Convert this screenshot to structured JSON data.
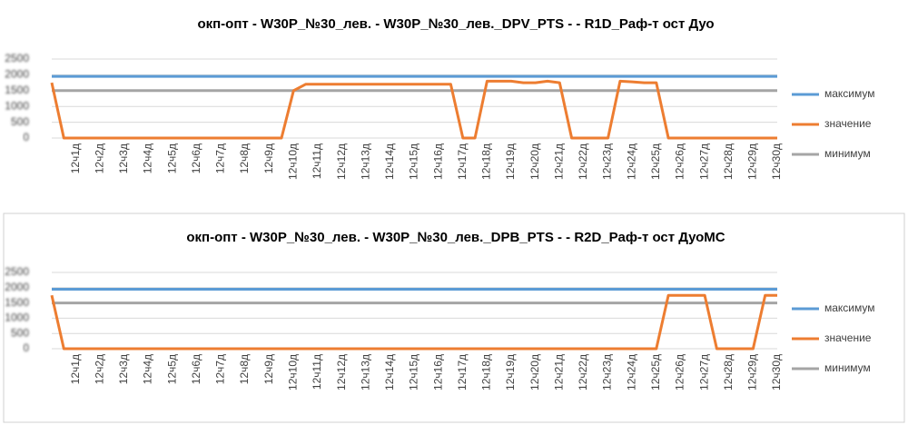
{
  "chart_data": [
    {
      "type": "line",
      "title": "окп-опт - W30P_№30_лев. - W30P_№30_лев._DPV_PTS -  - R1D_Раф-т ост Дуо",
      "categories": [
        null,
        null,
        "12ч1д",
        null,
        "12ч2д",
        null,
        "12ч3д",
        null,
        "12ч4д",
        null,
        "12ч5д",
        null,
        "12ч6д",
        null,
        "12ч7д",
        null,
        "12ч8д",
        null,
        "12ч9д",
        null,
        "12ч10д",
        null,
        "12ч11д",
        null,
        "12ч12д",
        null,
        "12ч13д",
        null,
        "12ч14д",
        null,
        "12ч15д",
        null,
        "12ч16д",
        null,
        "12ч17д",
        null,
        "12ч18д",
        null,
        "12ч19д",
        null,
        "12ч20д",
        null,
        "12ч21д",
        null,
        "12ч22д",
        null,
        "12ч23д",
        null,
        "12ч24д",
        null,
        "12ч25д",
        null,
        "12ч26д",
        null,
        "12ч27д",
        null,
        "12ч28д",
        null,
        "12ч29д",
        null,
        "12ч30д"
      ],
      "series": [
        {
          "name": "максимум",
          "color": "#5b9bd5",
          "values": [
            1950,
            1950,
            1950,
            1950,
            1950,
            1950,
            1950,
            1950,
            1950,
            1950,
            1950,
            1950,
            1950,
            1950,
            1950,
            1950,
            1950,
            1950,
            1950,
            1950,
            1950,
            1950,
            1950,
            1950,
            1950,
            1950,
            1950,
            1950,
            1950,
            1950,
            1950,
            1950,
            1950,
            1950,
            1950,
            1950,
            1950,
            1950,
            1950,
            1950,
            1950,
            1950,
            1950,
            1950,
            1950,
            1950,
            1950,
            1950,
            1950,
            1950,
            1950,
            1950,
            1950,
            1950,
            1950,
            1950,
            1950,
            1950,
            1950,
            1950,
            1950
          ]
        },
        {
          "name": "значение",
          "color": "#ed7d31",
          "values": [
            1750,
            0,
            0,
            0,
            0,
            0,
            0,
            0,
            0,
            0,
            0,
            0,
            0,
            0,
            0,
            0,
            0,
            0,
            0,
            0,
            1500,
            1700,
            1700,
            1700,
            1700,
            1700,
            1700,
            1700,
            1700,
            1700,
            1700,
            1700,
            1700,
            1700,
            0,
            0,
            1800,
            1800,
            1800,
            1750,
            1750,
            1800,
            1750,
            0,
            0,
            0,
            0,
            1800,
            1780,
            1750,
            1750,
            0,
            0,
            0,
            0,
            0,
            0,
            0,
            0,
            0,
            0
          ]
        },
        {
          "name": "минимум",
          "color": "#a5a5a5",
          "values": [
            1500,
            1500,
            1500,
            1500,
            1500,
            1500,
            1500,
            1500,
            1500,
            1500,
            1500,
            1500,
            1500,
            1500,
            1500,
            1500,
            1500,
            1500,
            1500,
            1500,
            1500,
            1500,
            1500,
            1500,
            1500,
            1500,
            1500,
            1500,
            1500,
            1500,
            1500,
            1500,
            1500,
            1500,
            1500,
            1500,
            1500,
            1500,
            1500,
            1500,
            1500,
            1500,
            1500,
            1500,
            1500,
            1500,
            1500,
            1500,
            1500,
            1500,
            1500,
            1500,
            1500,
            1500,
            1500,
            1500,
            1500,
            1500,
            1500,
            1500,
            1500
          ]
        }
      ],
      "ylim": [
        0,
        2500
      ],
      "yticks": [
        0,
        500,
        1000,
        1500,
        2000,
        2500
      ],
      "grid": true,
      "legend": "right"
    },
    {
      "type": "line",
      "title": "окп-опт - W30P_№30_лев. - W30P_№30_лев._DPB_PTS -  - R2D_Раф-т ост ДуоМС",
      "categories": [
        null,
        null,
        "12ч1д",
        null,
        "12ч2д",
        null,
        "12ч3д",
        null,
        "12ч4д",
        null,
        "12ч5д",
        null,
        "12ч6д",
        null,
        "12ч7д",
        null,
        "12ч8д",
        null,
        "12ч9д",
        null,
        "12ч10д",
        null,
        "12ч11д",
        null,
        "12ч12д",
        null,
        "12ч13д",
        null,
        "12ч14д",
        null,
        "12ч15д",
        null,
        "12ч16д",
        null,
        "12ч17д",
        null,
        "12ч18д",
        null,
        "12ч19д",
        null,
        "12ч20д",
        null,
        "12ч21д",
        null,
        "12ч22д",
        null,
        "12ч23д",
        null,
        "12ч24д",
        null,
        "12ч25д",
        null,
        "12ч26д",
        null,
        "12ч27д",
        null,
        "12ч28д",
        null,
        "12ч29д",
        null,
        "12ч30д"
      ],
      "series": [
        {
          "name": "максимум",
          "color": "#5b9bd5",
          "values": [
            1950,
            1950,
            1950,
            1950,
            1950,
            1950,
            1950,
            1950,
            1950,
            1950,
            1950,
            1950,
            1950,
            1950,
            1950,
            1950,
            1950,
            1950,
            1950,
            1950,
            1950,
            1950,
            1950,
            1950,
            1950,
            1950,
            1950,
            1950,
            1950,
            1950,
            1950,
            1950,
            1950,
            1950,
            1950,
            1950,
            1950,
            1950,
            1950,
            1950,
            1950,
            1950,
            1950,
            1950,
            1950,
            1950,
            1950,
            1950,
            1950,
            1950,
            1950,
            1950,
            1950,
            1950,
            1950,
            1950,
            1950,
            1950,
            1950,
            1950,
            1950
          ]
        },
        {
          "name": "значение",
          "color": "#ed7d31",
          "values": [
            1750,
            0,
            0,
            0,
            0,
            0,
            0,
            0,
            0,
            0,
            0,
            0,
            0,
            0,
            0,
            0,
            0,
            0,
            0,
            0,
            0,
            0,
            0,
            0,
            0,
            0,
            0,
            0,
            0,
            0,
            0,
            0,
            0,
            0,
            0,
            0,
            0,
            0,
            0,
            0,
            0,
            0,
            0,
            0,
            0,
            0,
            0,
            0,
            0,
            0,
            0,
            1750,
            1750,
            1750,
            1750,
            0,
            0,
            0,
            0,
            1750,
            1750
          ]
        },
        {
          "name": "минимум",
          "color": "#a5a5a5",
          "values": [
            1500,
            1500,
            1500,
            1500,
            1500,
            1500,
            1500,
            1500,
            1500,
            1500,
            1500,
            1500,
            1500,
            1500,
            1500,
            1500,
            1500,
            1500,
            1500,
            1500,
            1500,
            1500,
            1500,
            1500,
            1500,
            1500,
            1500,
            1500,
            1500,
            1500,
            1500,
            1500,
            1500,
            1500,
            1500,
            1500,
            1500,
            1500,
            1500,
            1500,
            1500,
            1500,
            1500,
            1500,
            1500,
            1500,
            1500,
            1500,
            1500,
            1500,
            1500,
            1500,
            1500,
            1500,
            1500,
            1500,
            1500,
            1500,
            1500,
            1500,
            1500
          ]
        }
      ],
      "ylim": [
        0,
        2500
      ],
      "yticks": [
        0,
        500,
        1000,
        1500,
        2000,
        2500
      ],
      "grid": true,
      "legend": "right"
    }
  ]
}
